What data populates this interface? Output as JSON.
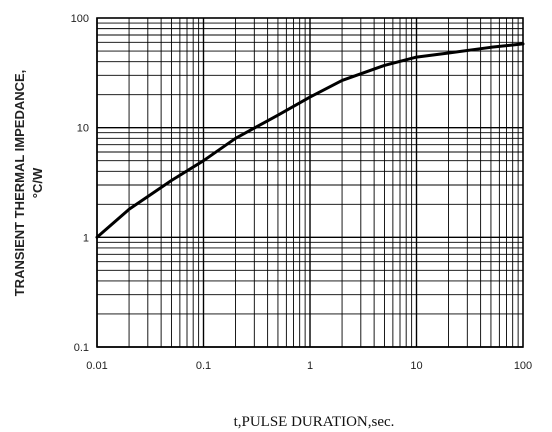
{
  "chart_data": {
    "type": "line",
    "title": "",
    "xlabel": "t,PULSE DURATION,sec.",
    "ylabel_line1": "TRANSIENT THERMAL IMPEDANCE,",
    "ylabel_line2": "°C/W",
    "x_scale": "log",
    "y_scale": "log",
    "xlim": [
      0.01,
      100
    ],
    "ylim": [
      0.1,
      100
    ],
    "grid": true,
    "x_ticks": [
      {
        "value": 0.01,
        "label": "0.01"
      },
      {
        "value": 0.1,
        "label": "0.1"
      },
      {
        "value": 1,
        "label": "1"
      },
      {
        "value": 10,
        "label": "10"
      },
      {
        "value": 100,
        "label": "100"
      }
    ],
    "y_ticks": [
      {
        "value": 0.1,
        "label": "0.1"
      },
      {
        "value": 1,
        "label": "1"
      },
      {
        "value": 10,
        "label": "10"
      },
      {
        "value": 100,
        "label": "100"
      }
    ],
    "series": [
      {
        "x": [
          0.01,
          0.02,
          0.05,
          0.1,
          0.2,
          0.5,
          1,
          2,
          5,
          10,
          20,
          50,
          100
        ],
        "y": [
          1.0,
          1.8,
          3.3,
          5.0,
          8.0,
          13.0,
          19.0,
          27.0,
          37.0,
          44.0,
          48.0,
          54.0,
          58.0
        ]
      }
    ]
  }
}
